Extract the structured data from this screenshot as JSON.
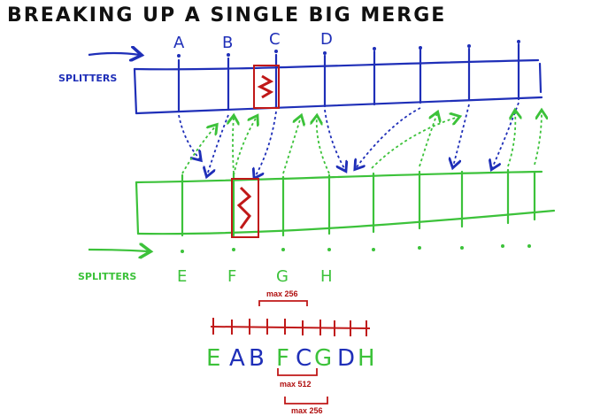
{
  "title": "BREAKING UP A SINGLE BIG MERGE",
  "top_splitters": {
    "label": "SPLITTERS",
    "keys": [
      "A",
      "B",
      "C",
      "D"
    ]
  },
  "bottom_splitters": {
    "label": "SPLITTERS",
    "keys": [
      "E",
      "F",
      "G",
      "H"
    ]
  },
  "merged_sequence": {
    "letters": [
      {
        "char": "E",
        "color": "green"
      },
      {
        "char": "A",
        "color": "blue"
      },
      {
        "char": "B",
        "color": "blue"
      },
      {
        "char": "F",
        "color": "green"
      },
      {
        "char": "C",
        "color": "blue"
      },
      {
        "char": "G",
        "color": "green"
      },
      {
        "char": "D",
        "color": "blue"
      },
      {
        "char": "H",
        "color": "green"
      }
    ]
  },
  "annotations": {
    "max_top": "max 256",
    "max_middle": "max 512",
    "max_bottom": "max 256"
  },
  "colors": {
    "blue": "#1f2fb8",
    "green": "#3cc23a",
    "red": "#c01818",
    "ink": "#111111"
  }
}
